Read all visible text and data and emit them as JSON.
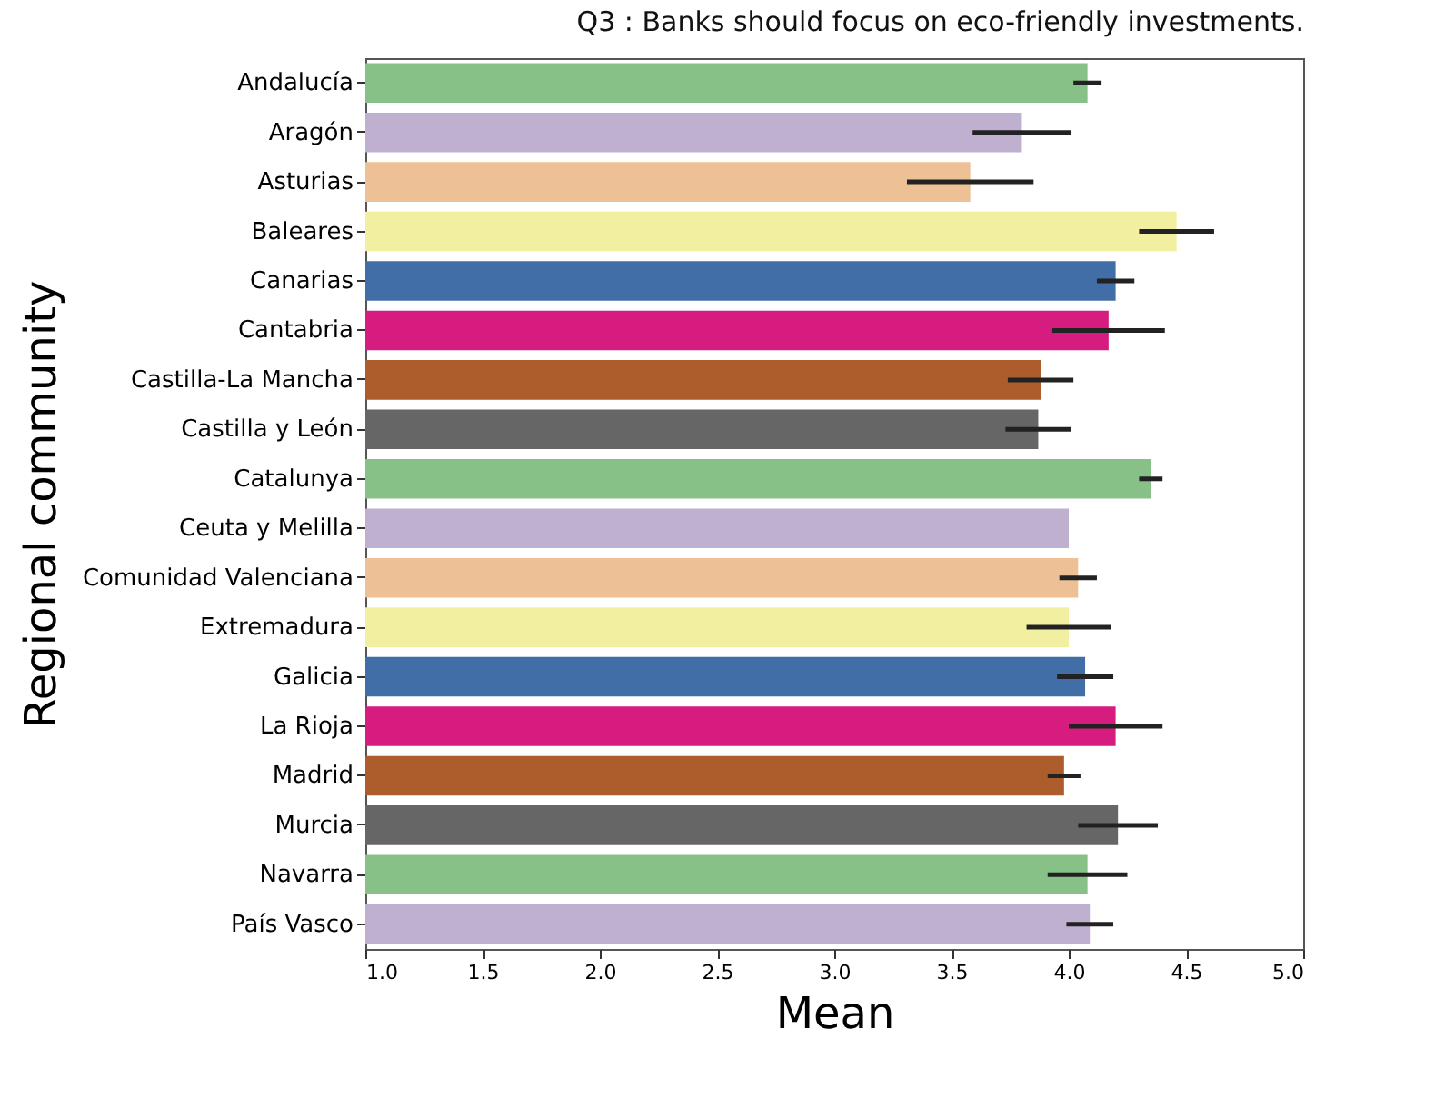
{
  "chart_data": {
    "type": "bar",
    "orientation": "horizontal",
    "title": "Q3 : Banks should focus on eco-friendly investments.",
    "xlabel": "Mean",
    "ylabel": "Regional community",
    "categories": [
      "Andalucía",
      "Aragón",
      "Asturias",
      "Baleares",
      "Canarias",
      "Cantabria",
      "Castilla-La Mancha",
      "Castilla y León",
      "Catalunya",
      "Ceuta y Melilla",
      "Comunidad Valenciana",
      "Extremadura",
      "Galicia",
      "La Rioja",
      "Madrid",
      "Murcia",
      "Navarra",
      "País Vasco"
    ],
    "values": [
      4.08,
      3.8,
      3.58,
      4.46,
      4.2,
      4.17,
      3.88,
      3.87,
      4.35,
      4.0,
      4.04,
      4.0,
      4.07,
      4.2,
      3.98,
      4.21,
      4.08,
      4.09
    ],
    "errors": [
      0.06,
      0.21,
      0.27,
      0.16,
      0.08,
      0.24,
      0.14,
      0.14,
      0.05,
      null,
      0.08,
      0.18,
      0.12,
      0.2,
      0.07,
      0.17,
      0.17,
      0.1
    ],
    "colors": [
      "#88c188",
      "#bfb0d0",
      "#eec095",
      "#f2f0a0",
      "#416ea6",
      "#d61d7f",
      "#ad5c2b",
      "#666666",
      "#88c188",
      "#bfb0d0",
      "#eec095",
      "#f2f0a0",
      "#416ea6",
      "#d61d7f",
      "#ad5c2b",
      "#666666",
      "#88c188",
      "#bfb0d0"
    ],
    "xlim": [
      1.0,
      5.0
    ],
    "xticks": [
      {
        "value": 1,
        "label": "1.0"
      },
      {
        "value": 1.5,
        "label": "1.5"
      },
      {
        "value": 2,
        "label": "2.0"
      },
      {
        "value": 2.5,
        "label": "2.5"
      },
      {
        "value": 3,
        "label": "3.0"
      },
      {
        "value": 3.5,
        "label": "3.5"
      },
      {
        "value": 4,
        "label": "4.0"
      },
      {
        "value": 4.5,
        "label": "4.5"
      },
      {
        "value": 5,
        "label": "5.0"
      }
    ],
    "grid": false
  }
}
